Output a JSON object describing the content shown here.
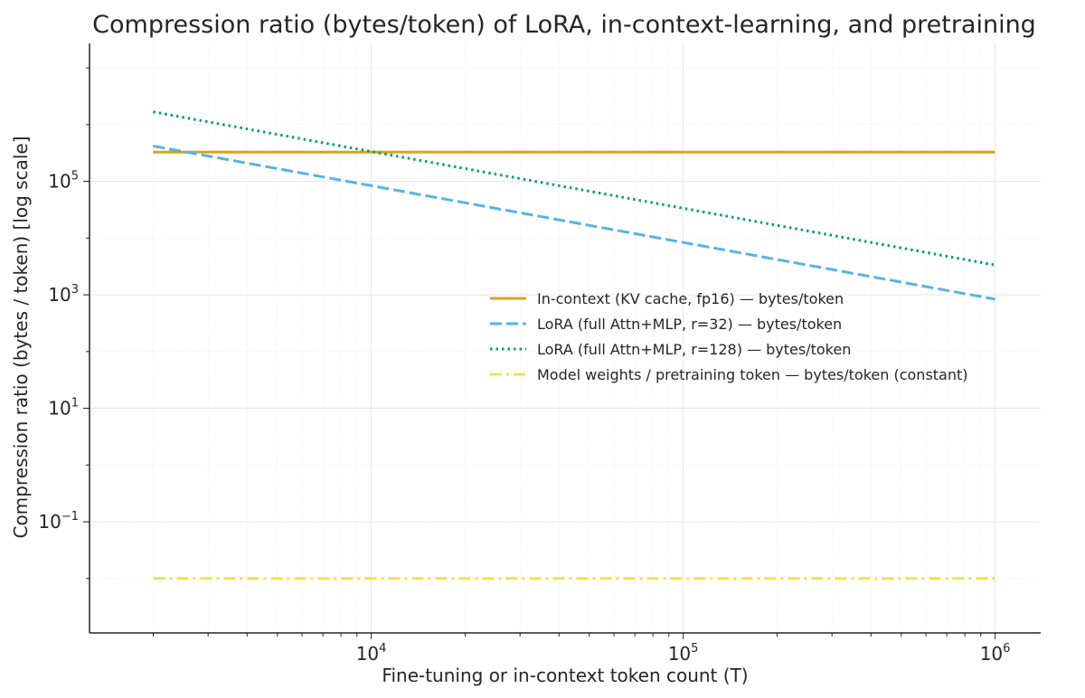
{
  "chart_data": {
    "type": "line",
    "title": "Compression ratio (bytes/token) of LoRA, in-context-learning, and pretraining",
    "xlabel": "Fine-tuning or in-context token count (T)",
    "ylabel": "Compression ratio (bytes / token) [log scale]",
    "xscale": "log",
    "yscale": "log",
    "xlim": [
      1250,
      1400000
    ],
    "ylim": [
      0.0011,
      27000000
    ],
    "grid": true,
    "legend_position": "center-right",
    "x_ticks": [
      {
        "value": 10000,
        "base": "10",
        "exp": "4"
      },
      {
        "value": 100000,
        "base": "10",
        "exp": "5"
      },
      {
        "value": 1000000,
        "base": "10",
        "exp": "6"
      }
    ],
    "y_ticks": [
      {
        "value": 0.1,
        "base": "10",
        "exp": "−1"
      },
      {
        "value": 10,
        "base": "10",
        "exp": "1"
      },
      {
        "value": 1000,
        "base": "10",
        "exp": "3"
      },
      {
        "value": 100000,
        "base": "10",
        "exp": "5"
      }
    ],
    "series": [
      {
        "name": "In-context (KV cache, fp16) — bytes/token",
        "color": "#DAA418",
        "style": "solid",
        "x": [
          2000,
          1000000
        ],
        "y": [
          327680,
          327680
        ]
      },
      {
        "name": "LoRA (full Attn+MLP, r=32) — bytes/token",
        "color": "#56B4E9",
        "style": "dashed",
        "x": [
          2000,
          1000000
        ],
        "y": [
          419000,
          838
        ]
      },
      {
        "name": "LoRA (full Attn+MLP, r=128) — bytes/token",
        "color": "#009E73",
        "style": "dotted",
        "x": [
          2000,
          1000000
        ],
        "y": [
          1680000,
          3360
        ]
      },
      {
        "name": "Model weights / pretraining token — bytes/token (constant)",
        "color": "#F0E442",
        "style": "dashdot",
        "x": [
          2000,
          1000000
        ],
        "y": [
          0.01,
          0.01
        ]
      }
    ]
  }
}
